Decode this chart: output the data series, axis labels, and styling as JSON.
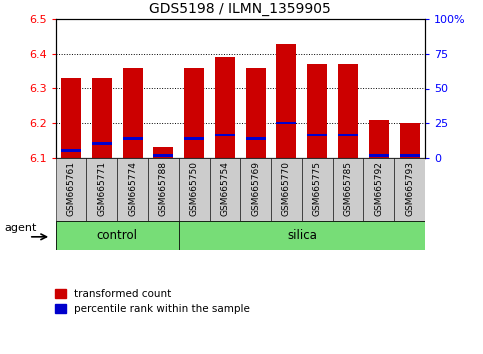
{
  "title": "GDS5198 / ILMN_1359905",
  "samples": [
    "GSM665761",
    "GSM665771",
    "GSM665774",
    "GSM665788",
    "GSM665750",
    "GSM665754",
    "GSM665769",
    "GSM665770",
    "GSM665775",
    "GSM665785",
    "GSM665792",
    "GSM665793"
  ],
  "groups": [
    "control",
    "control",
    "control",
    "control",
    "silica",
    "silica",
    "silica",
    "silica",
    "silica",
    "silica",
    "silica",
    "silica"
  ],
  "red_values": [
    6.33,
    6.33,
    6.36,
    6.13,
    6.36,
    6.39,
    6.36,
    6.43,
    6.37,
    6.37,
    6.21,
    6.2
  ],
  "blue_values": [
    6.12,
    6.14,
    6.155,
    6.105,
    6.155,
    6.165,
    6.155,
    6.2,
    6.165,
    6.165,
    6.105,
    6.105
  ],
  "blue_thickness": 0.008,
  "ylim_left": [
    6.1,
    6.5
  ],
  "ylim_right": [
    0,
    100
  ],
  "yticks_left": [
    6.1,
    6.2,
    6.3,
    6.4,
    6.5
  ],
  "yticks_right": [
    0,
    25,
    50,
    75,
    100
  ],
  "ytick_labels_right": [
    "0",
    "25",
    "50",
    "75",
    "100%"
  ],
  "bar_color_red": "#cc0000",
  "bar_color_blue": "#0000cc",
  "green_color": "#77dd77",
  "gray_color": "#cccccc",
  "agent_label": "agent",
  "control_label": "control",
  "silica_label": "silica",
  "legend_red": "transformed count",
  "legend_blue": "percentile rank within the sample",
  "bar_width": 0.65,
  "base_value": 6.1,
  "n_control": 4,
  "n_silica": 8
}
